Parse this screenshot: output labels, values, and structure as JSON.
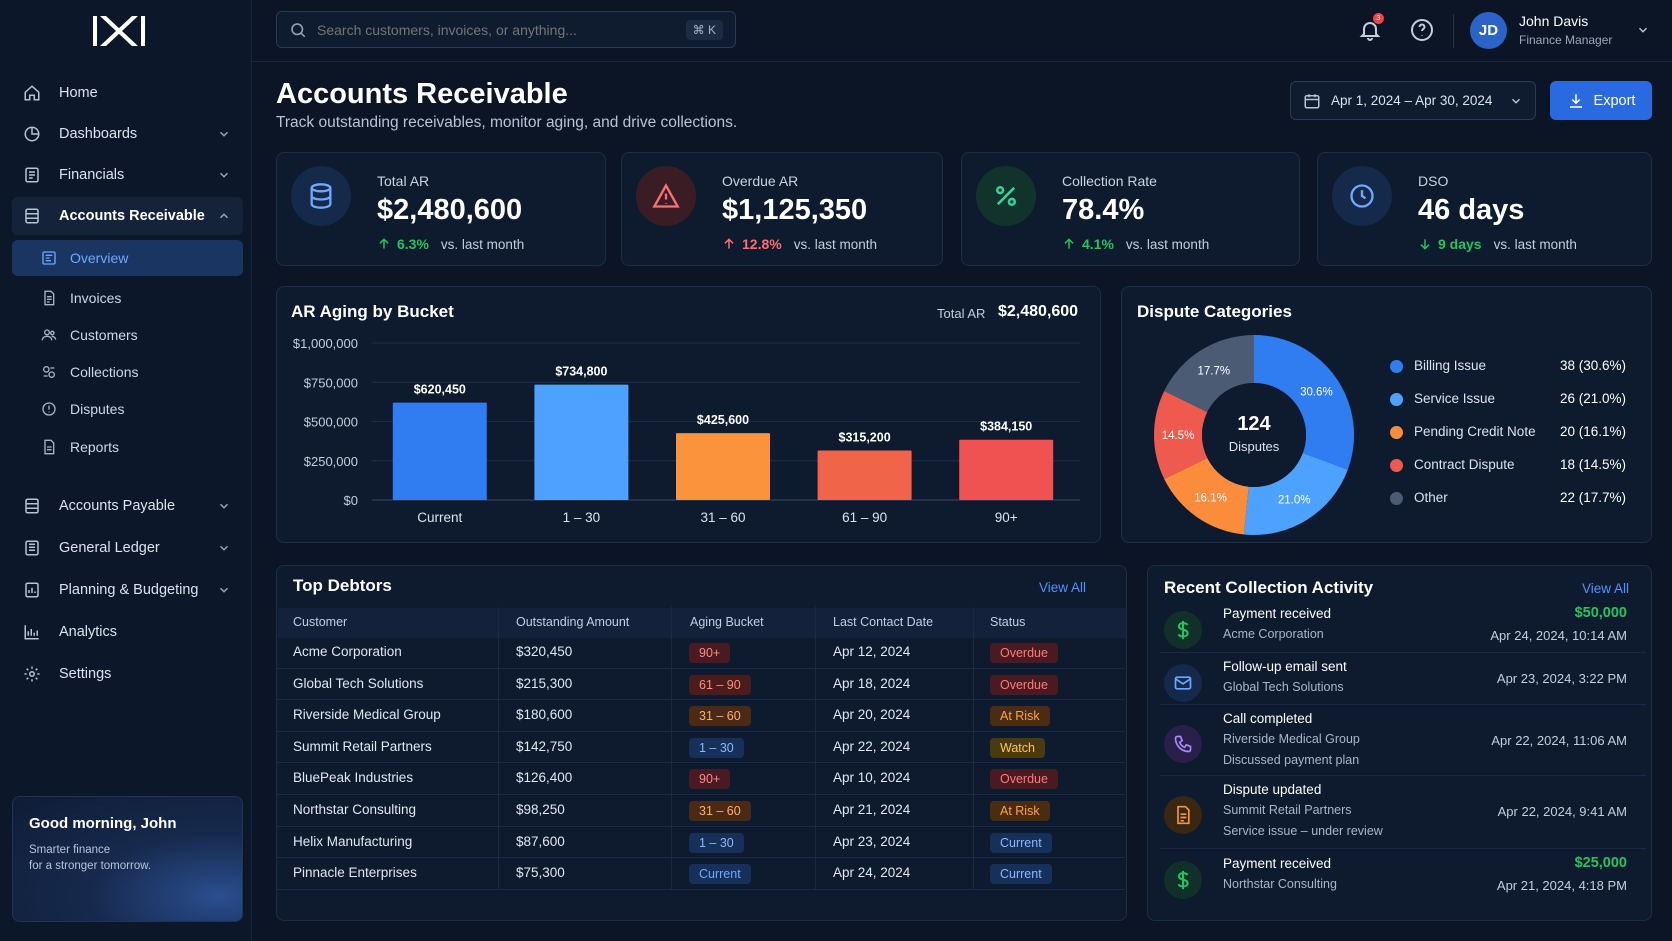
{
  "sidebar": {
    "nav": [
      {
        "label": "Home",
        "icon": "home-icon"
      },
      {
        "label": "Dashboards",
        "icon": "dashboard-icon"
      },
      {
        "label": "Financials",
        "icon": "financials-icon"
      },
      {
        "label": "Accounts Receivable",
        "icon": "ledger-icon"
      }
    ],
    "sub": [
      {
        "label": "Overview",
        "icon": "overview-icon"
      },
      {
        "label": "Invoices",
        "icon": "invoice-icon"
      },
      {
        "label": "Customers",
        "icon": "customers-icon"
      },
      {
        "label": "Collections",
        "icon": "collections-icon"
      },
      {
        "label": "Disputes",
        "icon": "disputes-icon"
      },
      {
        "label": "Reports",
        "icon": "reports-icon"
      }
    ],
    "nav2": [
      {
        "label": "Accounts Payable",
        "icon": "payable-icon"
      },
      {
        "label": "General Ledger",
        "icon": "general-ledger-icon"
      },
      {
        "label": "Planning & Budgeting",
        "icon": "planning-icon"
      },
      {
        "label": "Analytics",
        "icon": "analytics-icon"
      },
      {
        "label": "Settings",
        "icon": "gear-icon"
      }
    ],
    "greeting": {
      "title": "Good morning, John",
      "line1": "Smarter finance",
      "line2": "for a stronger tomorrow."
    }
  },
  "topbar": {
    "search_placeholder": "Search customers, invoices, or anything...",
    "shortcut": "⌘ K",
    "notification_count": "3",
    "user": {
      "initials": "JD",
      "name": "John Davis",
      "role": "Finance Manager"
    }
  },
  "header": {
    "title": "Accounts Receivable",
    "subtitle": "Track outstanding receivables, monitor aging, and drive collections.",
    "date_range": "Apr 1, 2024 – Apr 30, 2024",
    "export_label": "Export"
  },
  "kpis": [
    {
      "label": "Total AR",
      "value": "$2,480,600",
      "delta": "6.3%",
      "vs": "vs. last month",
      "direction": "up",
      "color": "#22c55e"
    },
    {
      "label": "Overdue AR",
      "value": "$1,125,350",
      "delta": "12.8%",
      "vs": "vs. last month",
      "direction": "up",
      "color": "#f87171"
    },
    {
      "label": "Collection Rate",
      "value": "78.4%",
      "delta": "4.1%",
      "vs": "vs. last month",
      "direction": "up",
      "color": "#22c55e"
    },
    {
      "label": "DSO",
      "value": "46 days",
      "delta": "9 days",
      "vs": "vs. last month",
      "direction": "down",
      "color": "#22c55e"
    }
  ],
  "aging": {
    "title": "AR Aging by Bucket",
    "total_label": "Total AR",
    "total_value": "$2,480,600"
  },
  "disputes": {
    "title": "Dispute Categories",
    "center_value": "124",
    "center_label": "Disputes"
  },
  "chart_data": [
    {
      "type": "bar",
      "title": "AR Aging by Bucket",
      "categories": [
        "Current",
        "1 – 30",
        "31 – 60",
        "61 – 90",
        "90+"
      ],
      "values": [
        620450,
        734800,
        425600,
        315200,
        384150
      ],
      "value_labels": [
        "$620,450",
        "$734,800",
        "$425,600",
        "$315,200",
        "$384,150"
      ],
      "colors": [
        "#2f7df0",
        "#4ea2ff",
        "#fb923c",
        "#f0654a",
        "#f05252"
      ],
      "ylim": [
        0,
        1000000
      ],
      "yticks": [
        0,
        250000,
        500000,
        750000,
        1000000
      ],
      "ytick_labels": [
        "$0",
        "$250,000",
        "$500,000",
        "$750,000",
        "$1,000,000"
      ],
      "grid": true
    },
    {
      "type": "pie",
      "title": "Dispute Categories",
      "labels": [
        "Billing Issue",
        "Service Issue",
        "Pending Credit Note",
        "Contract Dispute",
        "Other"
      ],
      "values": [
        38,
        26,
        20,
        18,
        22
      ],
      "percent_labels": [
        "30.6%",
        "21.0%",
        "16.1%",
        "14.5%",
        "17.7%"
      ],
      "legend_values": [
        "38 (30.6%)",
        "26 (21.0%)",
        "20 (16.1%)",
        "18 (14.5%)",
        "22 (17.7%)"
      ],
      "colors": [
        "#2f7df0",
        "#4ea2ff",
        "#fb8c3c",
        "#ef5a4f",
        "#4b5b74"
      ],
      "legend_position": "right"
    }
  ],
  "debtors": {
    "title": "Top Debtors",
    "view_all": "View All",
    "columns": [
      "Customer",
      "Outstanding Amount",
      "Aging Bucket",
      "Last Contact Date",
      "Status"
    ],
    "rows": [
      {
        "customer": "Acme Corporation",
        "amount": "$320,450",
        "bucket": "90+",
        "date": "Apr 12, 2024",
        "status": "Overdue"
      },
      {
        "customer": "Global Tech Solutions",
        "amount": "$215,300",
        "bucket": "61 – 90",
        "date": "Apr 18, 2024",
        "status": "Overdue"
      },
      {
        "customer": "Riverside Medical Group",
        "amount": "$180,600",
        "bucket": "31 – 60",
        "date": "Apr 20, 2024",
        "status": "At Risk"
      },
      {
        "customer": "Summit Retail Partners",
        "amount": "$142,750",
        "bucket": "1 – 30",
        "date": "Apr 22, 2024",
        "status": "Watch"
      },
      {
        "customer": "BluePeak Industries",
        "amount": "$126,400",
        "bucket": "90+",
        "date": "Apr 10, 2024",
        "status": "Overdue"
      },
      {
        "customer": "Northstar Consulting",
        "amount": "$98,250",
        "bucket": "31 – 60",
        "date": "Apr 21, 2024",
        "status": "At Risk"
      },
      {
        "customer": "Helix Manufacturing",
        "amount": "$87,600",
        "bucket": "1 – 30",
        "date": "Apr 23, 2024",
        "status": "Current"
      },
      {
        "customer": "Pinnacle Enterprises",
        "amount": "$75,300",
        "bucket": "Current",
        "date": "Apr 24, 2024",
        "status": "Current"
      }
    ]
  },
  "activity": {
    "title": "Recent Collection Activity",
    "view_all": "View All",
    "items": [
      {
        "icon": "dollar-icon",
        "title": "Payment received",
        "sub": "Acme Corporation",
        "sub2": "",
        "amount": "$50,000",
        "time": "Apr 24, 2024, 10:14 AM"
      },
      {
        "icon": "mail-icon",
        "title": "Follow-up email sent",
        "sub": "Global Tech Solutions",
        "sub2": "",
        "amount": "",
        "time": "Apr 23, 2024, 3:22 PM"
      },
      {
        "icon": "phone-icon",
        "title": "Call completed",
        "sub": "Riverside Medical Group",
        "sub2": "Discussed payment plan",
        "amount": "",
        "time": "Apr 22, 2024, 11:06 AM"
      },
      {
        "icon": "document-icon",
        "title": "Dispute updated",
        "sub": "Summit Retail Partners",
        "sub2": "Service issue – under review",
        "amount": "",
        "time": "Apr 22, 2024, 9:41 AM"
      },
      {
        "icon": "dollar-icon",
        "title": "Payment received",
        "sub": "Northstar Consulting",
        "sub2": "",
        "amount": "$25,000",
        "time": "Apr 21, 2024, 4:18 PM"
      }
    ]
  }
}
